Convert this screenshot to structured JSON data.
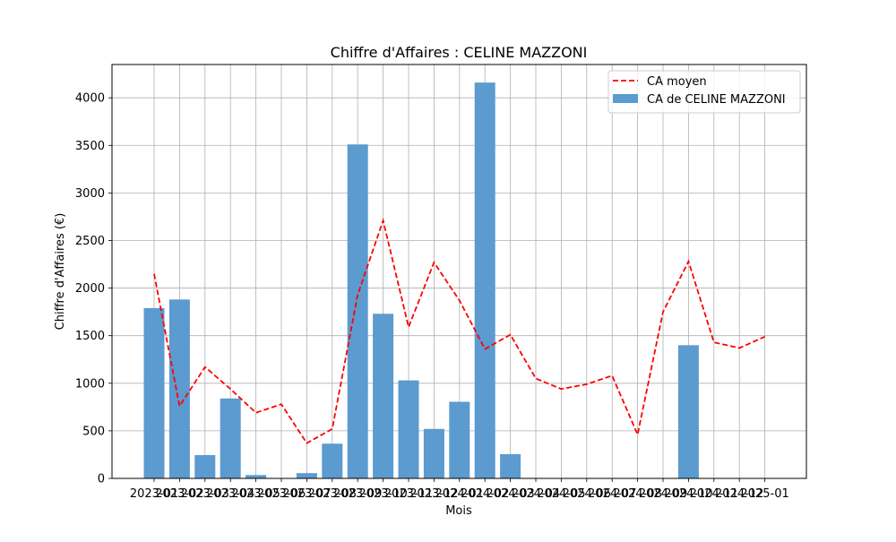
{
  "chart_data": {
    "type": "bar",
    "title": "Chiffre d'Affaires : CELINE MAZZONI",
    "xlabel": "Mois",
    "ylabel": "Chiffre d'Affaires (€)",
    "ylim": [
      0,
      4350
    ],
    "yticks": [
      0,
      500,
      1000,
      1500,
      2000,
      2500,
      3000,
      3500,
      4000
    ],
    "grid": true,
    "legend_position": "top-right",
    "categories": [
      "2023-01",
      "2023-02",
      "2023-03",
      "2023-04",
      "2023-05",
      "2023-06",
      "2023-07",
      "2023-08",
      "2023-09",
      "2023-10",
      "2023-11",
      "2023-12",
      "2024-01",
      "2024-02",
      "2024-03",
      "2024-04",
      "2024-05",
      "2024-06",
      "2024-07",
      "2024-08",
      "2024-09",
      "2024-10",
      "2024-11",
      "2024-12",
      "2025-01"
    ],
    "series": [
      {
        "name": "CA de CELINE MAZZONI",
        "kind": "bar",
        "color": "#5b9bd0",
        "values": [
          1790,
          1880,
          245,
          840,
          35,
          0,
          55,
          365,
          3510,
          1730,
          1030,
          520,
          805,
          4160,
          255,
          0,
          0,
          0,
          0,
          0,
          0,
          1400,
          0,
          0,
          0
        ]
      },
      {
        "name": "CA moyen",
        "kind": "line",
        "style": "dashed",
        "color": "#ff0000",
        "values": [
          2150,
          760,
          1170,
          940,
          690,
          780,
          370,
          520,
          1930,
          2710,
          1590,
          2270,
          1870,
          1360,
          1510,
          1050,
          940,
          990,
          1080,
          460,
          1750,
          2280,
          1430,
          1370,
          1490
        ]
      }
    ]
  }
}
